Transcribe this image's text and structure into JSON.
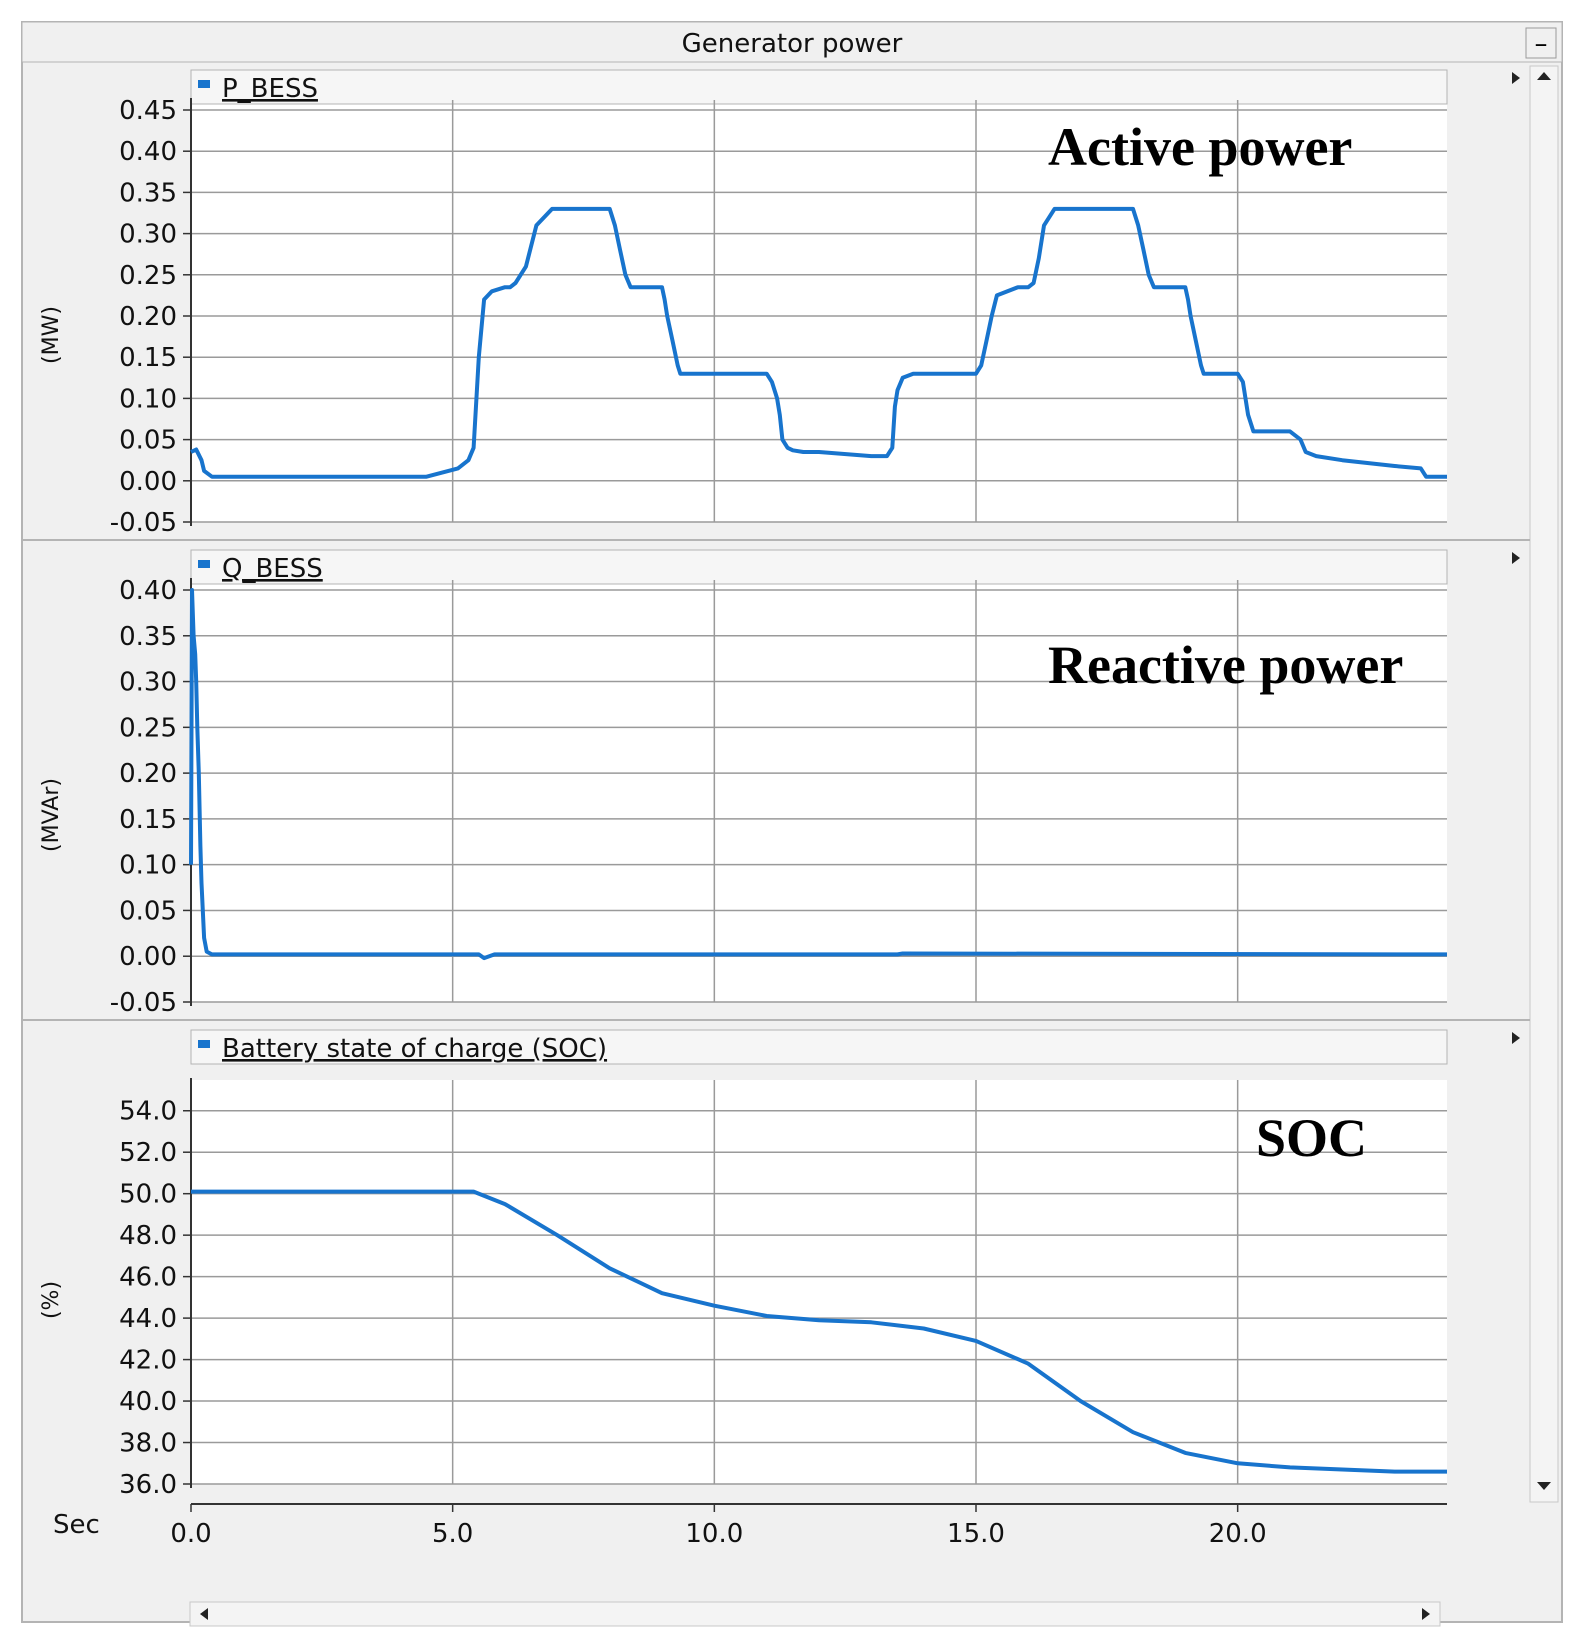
{
  "window": {
    "title": "Generator power",
    "minimize_label": "–"
  },
  "x_axis": {
    "label": "Sec",
    "ticks": [
      0.0,
      5.0,
      10.0,
      15.0,
      20.0
    ],
    "tick_labels": [
      "0.0",
      "5.0",
      "10.0",
      "15.0",
      "20.0"
    ],
    "range": [
      0,
      24
    ]
  },
  "colors": {
    "series": "#1874CD",
    "grid": "#9a9a9a",
    "frame": "#b4b4b4",
    "panel_bg": "#f0f0f0"
  },
  "chart_data": [
    {
      "type": "line",
      "title": "Active power",
      "ylabel": "(MW)",
      "ylim": [
        -0.05,
        0.45
      ],
      "grid": true,
      "y_ticks": [
        -0.05,
        0.0,
        0.05,
        0.1,
        0.15,
        0.2,
        0.25,
        0.3,
        0.35,
        0.4,
        0.45
      ],
      "y_tick_labels": [
        "-0.05",
        "0.00",
        "0.05",
        "0.10",
        "0.15",
        "0.20",
        "0.25",
        "0.30",
        "0.35",
        "0.40",
        "0.45"
      ],
      "series": [
        {
          "name": "P_BESS",
          "x": [
            0.0,
            0.1,
            0.2,
            0.25,
            0.4,
            4.5,
            4.8,
            5.1,
            5.3,
            5.4,
            5.5,
            5.6,
            5.75,
            6.0,
            6.1,
            6.2,
            6.4,
            6.6,
            6.9,
            7.5,
            8.0,
            8.1,
            8.2,
            8.3,
            8.4,
            8.6,
            9.0,
            9.05,
            9.1,
            9.2,
            9.3,
            9.35,
            9.5,
            10.0,
            11.0,
            11.1,
            11.2,
            11.25,
            11.3,
            11.4,
            11.5,
            11.7,
            12.0,
            13.0,
            13.3,
            13.4,
            13.45,
            13.5,
            13.6,
            13.8,
            14.0,
            15.0,
            15.1,
            15.2,
            15.3,
            15.4,
            15.8,
            16.0,
            16.1,
            16.2,
            16.3,
            16.5,
            16.9,
            17.5,
            18.0,
            18.1,
            18.2,
            18.3,
            18.4,
            18.6,
            19.0,
            19.05,
            19.1,
            19.2,
            19.3,
            19.35,
            19.5,
            20.0,
            20.1,
            20.15,
            20.2,
            20.3,
            20.5,
            21.0,
            21.2,
            21.3,
            21.5,
            22.0,
            23.0,
            23.5,
            23.6,
            24.0
          ],
          "values": [
            0.035,
            0.038,
            0.025,
            0.012,
            0.005,
            0.005,
            0.01,
            0.015,
            0.025,
            0.04,
            0.15,
            0.22,
            0.23,
            0.235,
            0.235,
            0.24,
            0.26,
            0.31,
            0.33,
            0.33,
            0.33,
            0.31,
            0.28,
            0.25,
            0.235,
            0.235,
            0.235,
            0.22,
            0.2,
            0.17,
            0.14,
            0.13,
            0.13,
            0.13,
            0.13,
            0.12,
            0.1,
            0.08,
            0.05,
            0.04,
            0.037,
            0.035,
            0.035,
            0.03,
            0.03,
            0.04,
            0.09,
            0.11,
            0.125,
            0.13,
            0.13,
            0.13,
            0.14,
            0.17,
            0.2,
            0.225,
            0.235,
            0.235,
            0.24,
            0.27,
            0.31,
            0.33,
            0.33,
            0.33,
            0.33,
            0.31,
            0.28,
            0.25,
            0.235,
            0.235,
            0.235,
            0.22,
            0.2,
            0.17,
            0.14,
            0.13,
            0.13,
            0.13,
            0.12,
            0.1,
            0.08,
            0.06,
            0.06,
            0.06,
            0.05,
            0.035,
            0.03,
            0.025,
            0.018,
            0.015,
            0.005,
            0.005
          ]
        }
      ]
    },
    {
      "type": "line",
      "title": "Reactive power",
      "ylabel": "(MVAr)",
      "ylim": [
        -0.05,
        0.4
      ],
      "grid": true,
      "y_ticks": [
        -0.05,
        0.0,
        0.05,
        0.1,
        0.15,
        0.2,
        0.25,
        0.3,
        0.35,
        0.4
      ],
      "y_tick_labels": [
        "-0.05",
        "0.00",
        "0.05",
        "0.10",
        "0.15",
        "0.20",
        "0.25",
        "0.30",
        "0.35",
        "0.40"
      ],
      "series": [
        {
          "name": "Q_BESS",
          "x": [
            0.0,
            0.02,
            0.05,
            0.08,
            0.1,
            0.12,
            0.15,
            0.18,
            0.2,
            0.25,
            0.3,
            0.4,
            5.0,
            5.5,
            5.6,
            5.8,
            13.5,
            13.6,
            24.0
          ],
          "values": [
            0.1,
            0.4,
            0.35,
            0.33,
            0.3,
            0.25,
            0.2,
            0.12,
            0.08,
            0.02,
            0.005,
            0.002,
            0.002,
            0.002,
            -0.002,
            0.002,
            0.002,
            0.003,
            0.002
          ]
        }
      ]
    },
    {
      "type": "line",
      "title": "SOC",
      "ylabel": "(%)",
      "ylim": [
        36.0,
        55.0
      ],
      "grid": true,
      "y_ticks": [
        36.0,
        38.0,
        40.0,
        42.0,
        44.0,
        46.0,
        48.0,
        50.0,
        52.0,
        54.0
      ],
      "y_tick_labels": [
        "36.0",
        "38.0",
        "40.0",
        "42.0",
        "44.0",
        "46.0",
        "48.0",
        "50.0",
        "52.0",
        "54.0"
      ],
      "series": [
        {
          "name": "Battery state of charge (SOC)",
          "x": [
            0.0,
            5.0,
            5.4,
            6.0,
            7.0,
            8.0,
            9.0,
            10.0,
            11.0,
            12.0,
            13.0,
            14.0,
            15.0,
            16.0,
            17.0,
            18.0,
            19.0,
            20.0,
            21.0,
            22.0,
            23.0,
            24.0
          ],
          "values": [
            50.1,
            50.1,
            50.1,
            49.5,
            48.0,
            46.4,
            45.2,
            44.6,
            44.1,
            43.9,
            43.8,
            43.5,
            42.9,
            41.8,
            40.0,
            38.5,
            37.5,
            37.0,
            36.8,
            36.7,
            36.6,
            36.6
          ]
        }
      ]
    }
  ]
}
